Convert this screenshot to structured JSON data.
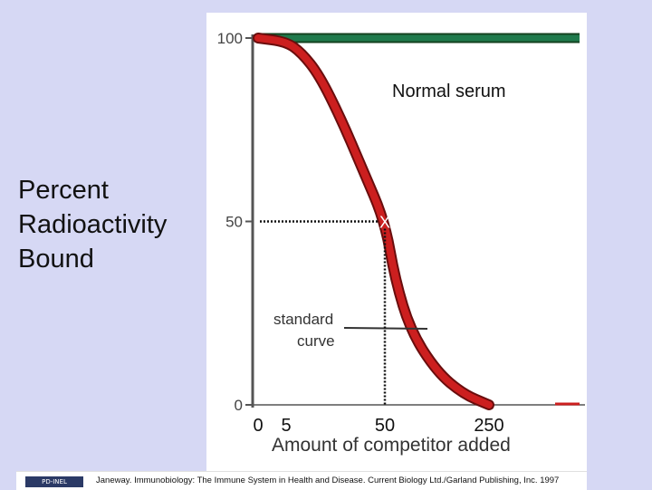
{
  "chart_data": {
    "type": "line",
    "ylabel": [
      "Percent",
      "Radioactivity",
      "Bound"
    ],
    "xlabel": "Amount of competitor added",
    "y_ticks": [
      0,
      50,
      100
    ],
    "x_tick_labels": [
      "0",
      "5",
      "50",
      "250"
    ],
    "ylim": [
      0,
      100
    ],
    "grid": false,
    "series": [
      {
        "name": "Normal serum",
        "color": "#1f7a4c",
        "points": [
          {
            "x": 0,
            "y": 100
          },
          {
            "x": 250,
            "y": 100
          },
          {
            "x": 400,
            "y": 100
          }
        ]
      },
      {
        "name": "standard curve",
        "color": "#cc1f1f",
        "points": [
          {
            "x": 0,
            "y": 100
          },
          {
            "x": 5,
            "y": 99
          },
          {
            "x": 12,
            "y": 96
          },
          {
            "x": 20,
            "y": 90
          },
          {
            "x": 30,
            "y": 78
          },
          {
            "x": 40,
            "y": 64
          },
          {
            "x": 50,
            "y": 50
          },
          {
            "x": 70,
            "y": 34
          },
          {
            "x": 100,
            "y": 20
          },
          {
            "x": 150,
            "y": 9
          },
          {
            "x": 200,
            "y": 3
          },
          {
            "x": 250,
            "y": 0
          }
        ]
      }
    ],
    "annotations": [
      {
        "name": "half-max-marker",
        "text": "X",
        "x": 50,
        "y": 50
      }
    ]
  },
  "credit": {
    "logo": "PD-INEL",
    "text": "Janeway. Immunobiology: The Immune System in Health and Disease. Current Biology Ltd./Garland Publishing, Inc. 1997"
  }
}
